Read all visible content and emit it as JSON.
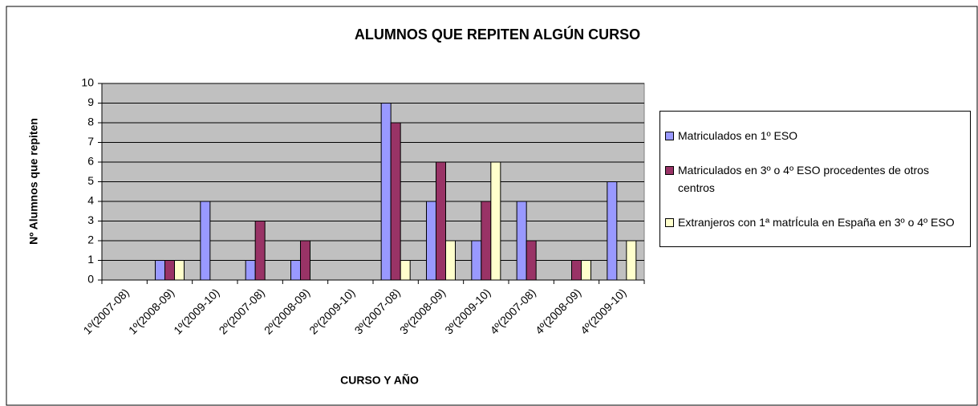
{
  "chart_data": {
    "type": "bar",
    "title": "ALUMNOS QUE REPITEN ALGÚN CURSO",
    "x_label": "CURSO Y AÑO",
    "y_label": "Nº Alumnos que repiten",
    "categories": [
      "1º(2007-08)",
      "1º(2008-09)",
      "1º(2009-10)",
      "2º(2007-08)",
      "2º(2008-09)",
      "2º(2009-10)",
      "3º(2007-08)",
      "3º(2008-09)",
      "3º(2009-10)",
      "4º(2007-08)",
      "4º(2008-09)",
      "4º(2009-10)"
    ],
    "series": [
      {
        "name": "Matriculados en 1º ESO",
        "color": "#9999ff",
        "values": [
          null,
          1,
          4,
          1,
          1,
          null,
          9,
          4,
          2,
          4,
          null,
          5
        ]
      },
      {
        "name": "Matriculados en 3º o 4º ESO procedentes de otros centros",
        "color": "#993366",
        "values": [
          null,
          1,
          null,
          3,
          2,
          null,
          8,
          6,
          4,
          2,
          1,
          null
        ]
      },
      {
        "name": "Extranjeros con 1ª matrÍcula en España en 3º o 4º ESO",
        "color": "#ffffcc",
        "values": [
          null,
          1,
          null,
          null,
          null,
          null,
          1,
          2,
          6,
          null,
          1,
          2
        ]
      }
    ],
    "ylim": [
      0,
      10
    ],
    "yticks": [
      0,
      1,
      2,
      3,
      4,
      5,
      6,
      7,
      8,
      9,
      10
    ],
    "grid": true,
    "legend": "right"
  }
}
